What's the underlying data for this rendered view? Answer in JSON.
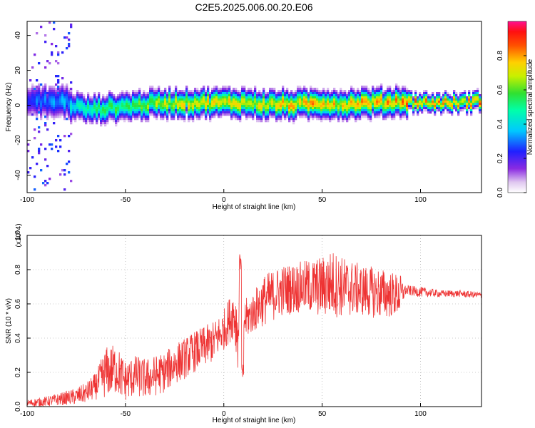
{
  "title": "C2E5.2025.006.00.20.E06",
  "chart_data": [
    {
      "type": "heatmap",
      "xlabel": "Height of straight line (km)",
      "ylabel": "Frequency (Hz)",
      "xlim": [
        -100,
        131
      ],
      "ylim": [
        -50,
        48
      ],
      "xticks": [
        -100,
        -50,
        0,
        50,
        100
      ],
      "yticks": [
        -40,
        -20,
        0,
        20,
        40
      ],
      "colorbar": {
        "label": "Normalized spectral amplitude",
        "range": [
          0,
          1
        ],
        "ticks": [
          "0.0",
          "0.2",
          "0.4",
          "0.6",
          "0.8"
        ],
        "tick_values": [
          0,
          0.2,
          0.4,
          0.6,
          0.8
        ]
      },
      "ridge": {
        "x": [
          -100,
          -90,
          -80,
          -75,
          -70,
          -60,
          -50,
          -40,
          -30,
          -20,
          -10,
          0,
          10,
          20,
          30,
          40,
          50,
          60,
          70,
          80,
          90,
          100,
          110,
          120,
          131
        ],
        "center_freq": [
          2,
          3,
          2,
          0,
          -2,
          -1,
          0,
          1,
          2,
          2,
          2,
          2,
          2,
          1,
          1,
          1,
          2,
          1,
          2,
          2,
          3,
          2,
          2,
          2,
          3
        ],
        "peak_amplitude": [
          0.3,
          0.35,
          0.4,
          0.5,
          0.55,
          0.6,
          0.65,
          0.7,
          0.75,
          0.8,
          0.8,
          0.8,
          0.85,
          0.85,
          0.85,
          0.85,
          0.85,
          0.8,
          0.85,
          0.85,
          0.9,
          0.9,
          0.85,
          0.85,
          0.9
        ]
      }
    },
    {
      "type": "line",
      "xlabel": "Height of straight line (km)",
      "ylabel": "SNR (10 * v/v)",
      "y_multiplier": "(x10^4)",
      "xlim": [
        -100,
        131
      ],
      "ylim": [
        0,
        1.0
      ],
      "xticks": [
        -100,
        -50,
        0,
        50,
        100
      ],
      "yticks": [
        "0.0",
        "0.2",
        "0.4",
        "0.6",
        "0.8",
        "1.0"
      ],
      "ytick_values": [
        0,
        0.2,
        0.4,
        0.6,
        0.8,
        1.0
      ],
      "color": "#ee3333",
      "x": [
        -100,
        -90,
        -80,
        -75,
        -70,
        -65,
        -60,
        -55,
        -50,
        -45,
        -40,
        -35,
        -30,
        -25,
        -20,
        -15,
        -10,
        -5,
        0,
        5,
        8,
        10,
        15,
        20,
        25,
        30,
        40,
        50,
        55,
        60,
        70,
        80,
        90,
        92,
        100,
        110,
        120,
        131
      ],
      "values": [
        0.02,
        0.03,
        0.05,
        0.06,
        0.08,
        0.12,
        0.2,
        0.22,
        0.15,
        0.18,
        0.16,
        0.18,
        0.2,
        0.25,
        0.28,
        0.32,
        0.35,
        0.38,
        0.45,
        0.55,
        0.4,
        0.5,
        0.55,
        0.62,
        0.65,
        0.68,
        0.7,
        0.7,
        0.72,
        0.7,
        0.68,
        0.66,
        0.65,
        0.68,
        0.67,
        0.66,
        0.66,
        0.65
      ],
      "noise_envelope": [
        0.02,
        0.03,
        0.04,
        0.05,
        0.06,
        0.08,
        0.15,
        0.15,
        0.12,
        0.12,
        0.12,
        0.12,
        0.12,
        0.12,
        0.12,
        0.12,
        0.12,
        0.12,
        0.12,
        0.15,
        0.25,
        0.12,
        0.12,
        0.15,
        0.15,
        0.15,
        0.15,
        0.18,
        0.2,
        0.18,
        0.15,
        0.15,
        0.12,
        0.03,
        0.03,
        0.02,
        0.02,
        0.02
      ]
    }
  ]
}
